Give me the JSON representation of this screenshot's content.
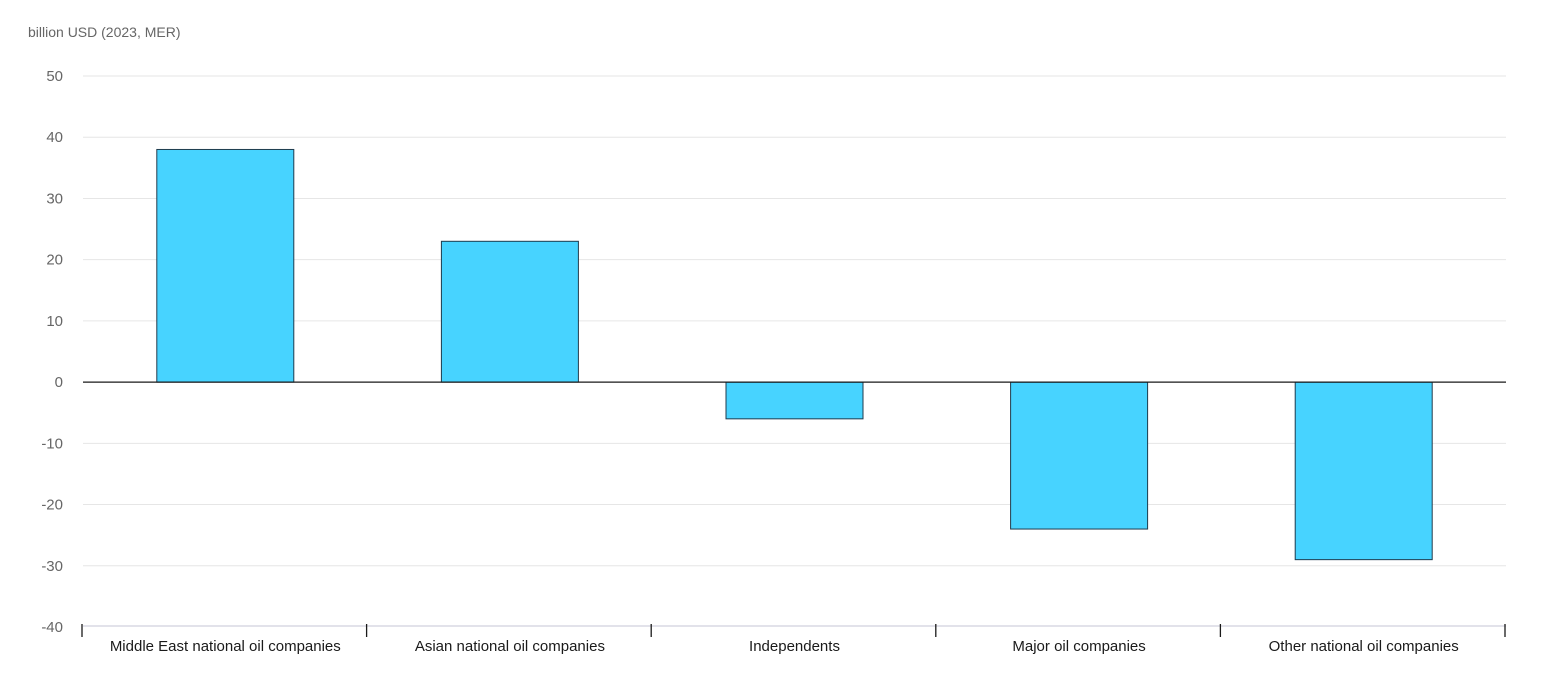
{
  "chart_data": {
    "type": "bar",
    "ylabel": "billion USD (2023, MER)",
    "xlabel": "",
    "categories": [
      "Middle East national oil companies",
      "Asian national oil companies",
      "Independents",
      "Major oil companies",
      "Other national oil companies"
    ],
    "values": [
      38,
      23,
      -6,
      -24,
      -29
    ],
    "ylim": [
      -40,
      50
    ],
    "yticks": [
      50,
      40,
      30,
      20,
      10,
      0,
      -10,
      -20,
      -30,
      -40
    ],
    "grid": true,
    "legend": "none",
    "colors": {
      "bar_fill": "#47d3ff",
      "bar_stroke": "#1f3b4d",
      "grid": "#e6e6e6",
      "zero_line": "#1a1a1a",
      "axis": "#d9d9e3",
      "tick_text": "#666666",
      "category_text": "#1a1a1a"
    }
  }
}
